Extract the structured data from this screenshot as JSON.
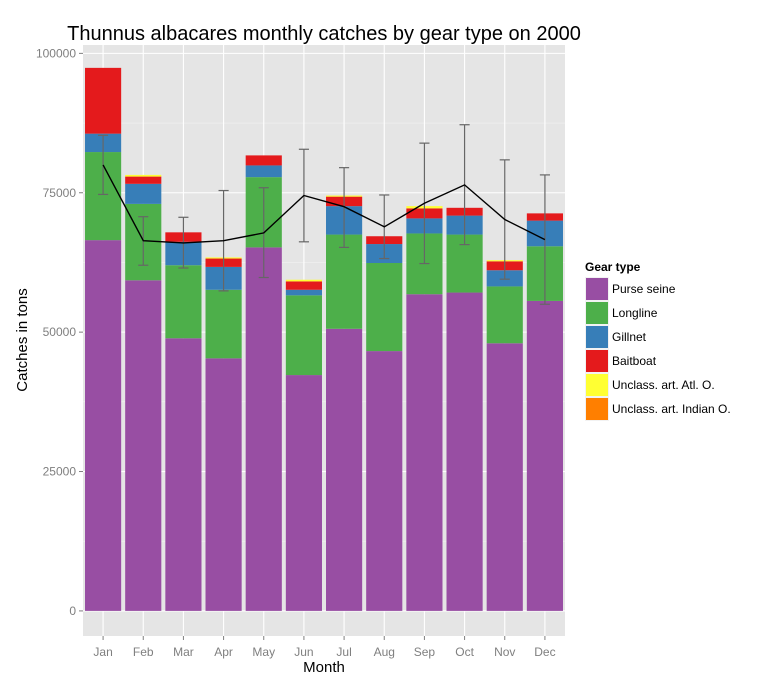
{
  "chart_data": {
    "type": "bar",
    "stacked": true,
    "title": "Thunnus albacares monthly catches by gear type on 2000",
    "xlabel": "Month",
    "ylabel": "Catches in tons",
    "ylim": [
      -4500,
      101500
    ],
    "yticks": [
      0,
      25000,
      50000,
      75000,
      100000
    ],
    "grid": true,
    "legend_position": "right",
    "legend_title": "Gear type",
    "categories": [
      "Jan",
      "Feb",
      "Mar",
      "Apr",
      "May",
      "Jun",
      "Jul",
      "Aug",
      "Sep",
      "Oct",
      "Nov",
      "Dec"
    ],
    "series": [
      {
        "name": "Purse seine",
        "color": "#984EA3",
        "values": [
          66500,
          59300,
          48900,
          45300,
          65200,
          42300,
          50600,
          46600,
          56800,
          57100,
          48000,
          55600
        ]
      },
      {
        "name": "Longline",
        "color": "#4DAF4A",
        "values": [
          15800,
          13700,
          13100,
          12300,
          12600,
          14300,
          16900,
          15800,
          10900,
          10400,
          10200,
          9800
        ]
      },
      {
        "name": "Gillnet",
        "color": "#377EB8",
        "values": [
          3300,
          3600,
          4200,
          4100,
          2100,
          1000,
          5100,
          3400,
          2700,
          3400,
          2900,
          4600
        ]
      },
      {
        "name": "Baitboat",
        "color": "#E41A1C",
        "values": [
          11800,
          1300,
          1700,
          1500,
          1800,
          1500,
          1700,
          1400,
          1800,
          1400,
          1600,
          1300
        ]
      },
      {
        "name": "Unclass. art. Atl. O.",
        "color": "#FFFF33",
        "values": [
          0,
          300,
          0,
          200,
          0,
          300,
          200,
          0,
          400,
          0,
          200,
          0
        ]
      },
      {
        "name": "Unclass. art. Indian O.",
        "color": "#FF7F00",
        "values": [
          0,
          0,
          0,
          0,
          0,
          0,
          0,
          0,
          0,
          0,
          0,
          0
        ]
      }
    ],
    "line": {
      "color": "#000000",
      "values": [
        80000,
        66400,
        66000,
        66400,
        67800,
        74500,
        72500,
        68900,
        73100,
        76400,
        70200,
        66600
      ]
    },
    "error_bars": {
      "color": "#666666",
      "low": [
        74700,
        62000,
        61500,
        57400,
        59800,
        66200,
        65200,
        63200,
        62300,
        65700,
        59500,
        55000
      ],
      "high": [
        85300,
        70700,
        70600,
        75400,
        75900,
        82800,
        79500,
        74600,
        83900,
        87200,
        80900,
        78200
      ]
    }
  }
}
